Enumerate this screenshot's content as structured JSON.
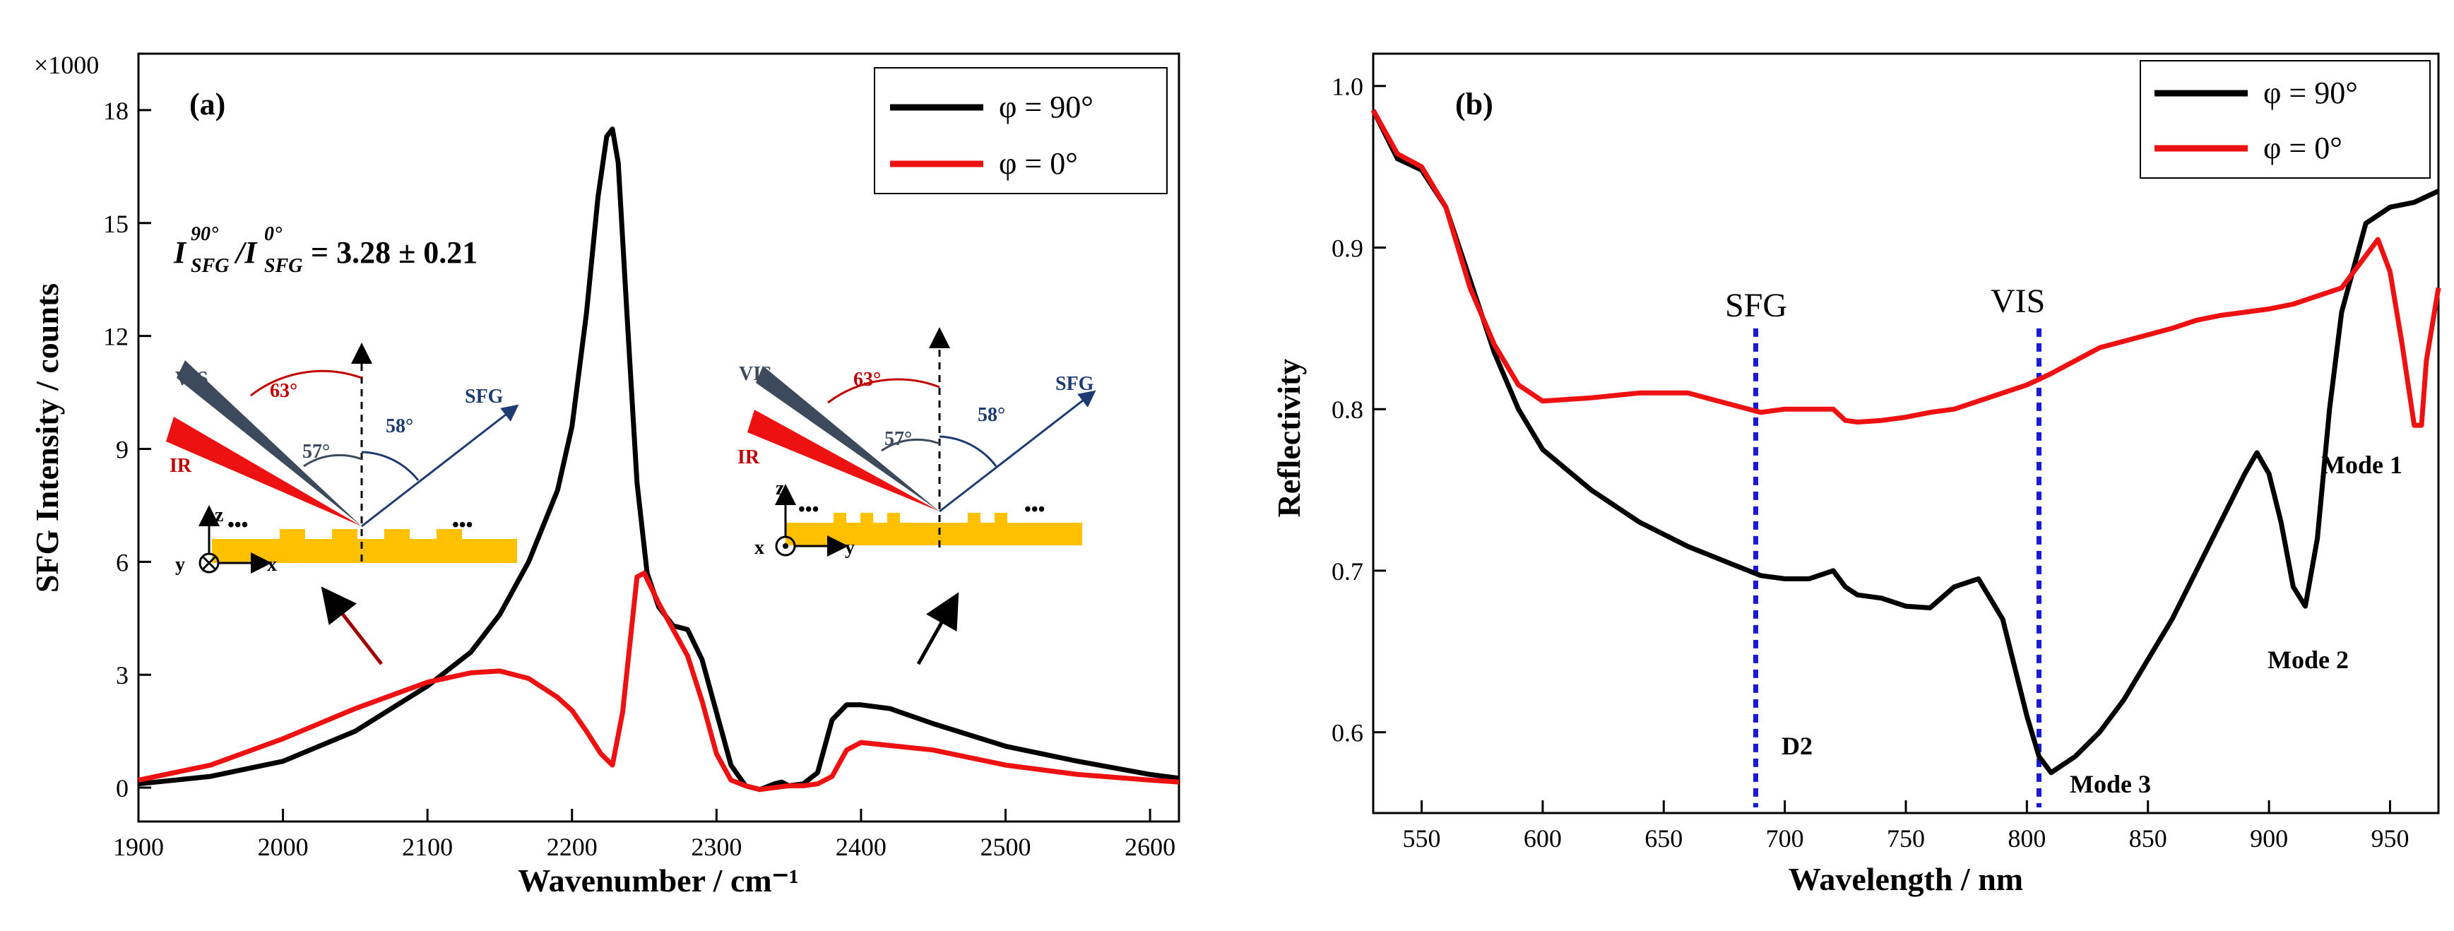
{
  "panel_a": {
    "label": "(a)",
    "multiplier": "×1000",
    "ratio_text": "I^90°_SFG / I^0°_SFG = 3.28 ± 0.21",
    "ratio_i": "I",
    "ratio_sup1": "90°",
    "ratio_sub": "SFG",
    "ratio_slash": "/I",
    "ratio_sup2": "0°",
    "ratio_value": "= 3.28 ± 0.21",
    "inset_left": {
      "vis": "VIS",
      "ir": "IR",
      "sfg": "SFG",
      "angle_63": "63°",
      "angle_57": "57°",
      "angle_58": "58°",
      "axis_z": "z",
      "axis_y": "y",
      "axis_x": "x",
      "dots": "•••"
    },
    "inset_right": {
      "vis": "VIS",
      "ir": "IR",
      "sfg": "SFG",
      "angle_63": "63°",
      "angle_57": "57°",
      "angle_58": "58°",
      "axis_z": "z",
      "axis_x": "x",
      "axis_y": "y",
      "dots": "•••"
    }
  },
  "panel_b": {
    "label": "(b)",
    "marker_sfg": "SFG",
    "marker_vis": "VIS",
    "mode1": "Mode 1",
    "mode2": "Mode 2",
    "mode3": "Mode 3",
    "d2": "D2"
  },
  "colors": {
    "black_series": "#000000",
    "red_series": "#ee1111",
    "marker": "#1a1ad6",
    "gold": "#ffc000",
    "navy": "#1f3b73",
    "dark_red": "#c00000",
    "slate": "#3d4a5c"
  },
  "chart_data": [
    {
      "type": "line",
      "title": "",
      "xlabel": "Wavenumber / cm⁻¹",
      "ylabel": "SFG Intensity / counts",
      "xlim": [
        1900,
        2620
      ],
      "ylim": [
        -0.9,
        19.5
      ],
      "xticks": [
        1900,
        2000,
        2100,
        2200,
        2300,
        2400,
        2500,
        2600
      ],
      "yticks": [
        0,
        3,
        6,
        9,
        12,
        15,
        18
      ],
      "legend_position": "top-right",
      "series": [
        {
          "name": "φ = 90°",
          "color": "#000000",
          "x": [
            1900,
            1950,
            2000,
            2050,
            2100,
            2130,
            2150,
            2170,
            2190,
            2200,
            2210,
            2218,
            2224,
            2228,
            2232,
            2238,
            2245,
            2252,
            2260,
            2270,
            2280,
            2290,
            2300,
            2310,
            2320,
            2330,
            2340,
            2345,
            2350,
            2360,
            2370,
            2380,
            2390,
            2400,
            2420,
            2450,
            2500,
            2550,
            2600,
            2620
          ],
          "y": [
            0.1,
            0.3,
            0.7,
            1.5,
            2.7,
            3.6,
            4.6,
            6.0,
            7.9,
            9.6,
            12.6,
            15.7,
            17.3,
            17.5,
            16.6,
            12.6,
            8.1,
            5.7,
            4.8,
            4.3,
            4.2,
            3.4,
            2.0,
            0.6,
            0.05,
            -0.05,
            0.1,
            0.15,
            0.05,
            0.1,
            0.4,
            1.8,
            2.2,
            2.2,
            2.1,
            1.7,
            1.1,
            0.7,
            0.35,
            0.25
          ]
        },
        {
          "name": "φ = 0°",
          "color": "#ee1111",
          "x": [
            1900,
            1950,
            2000,
            2050,
            2100,
            2130,
            2150,
            2170,
            2190,
            2200,
            2210,
            2220,
            2228,
            2235,
            2240,
            2245,
            2250,
            2260,
            2270,
            2280,
            2290,
            2300,
            2310,
            2320,
            2330,
            2340,
            2350,
            2360,
            2370,
            2380,
            2390,
            2400,
            2450,
            2500,
            2550,
            2600,
            2620
          ],
          "y": [
            0.2,
            0.6,
            1.3,
            2.1,
            2.8,
            3.05,
            3.1,
            2.9,
            2.4,
            2.05,
            1.5,
            0.9,
            0.6,
            2.0,
            3.8,
            5.6,
            5.7,
            4.9,
            4.2,
            3.5,
            2.3,
            0.9,
            0.2,
            0.05,
            -0.05,
            0.0,
            0.05,
            0.05,
            0.1,
            0.3,
            1.0,
            1.2,
            1.0,
            0.6,
            0.35,
            0.2,
            0.15
          ]
        }
      ],
      "annotations": [
        "(a)",
        "×1000",
        "I^90°_SFG / I^0°_SFG = 3.28 ± 0.21"
      ]
    },
    {
      "type": "line",
      "title": "",
      "xlabel": "Wavelength / nm",
      "ylabel": "Reflectivity",
      "xlim": [
        530,
        970
      ],
      "ylim": [
        0.55,
        1.02
      ],
      "xticks": [
        550,
        600,
        650,
        700,
        750,
        800,
        850,
        900,
        950
      ],
      "yticks": [
        0.6,
        0.7,
        0.8,
        0.9,
        1.0
      ],
      "legend_position": "top-right",
      "vertical_markers": [
        {
          "x": 688,
          "label": "SFG"
        },
        {
          "x": 805,
          "label": "VIS"
        }
      ],
      "series": [
        {
          "name": "φ = 90°",
          "color": "#000000",
          "x": [
            530,
            540,
            550,
            560,
            570,
            580,
            590,
            600,
            620,
            640,
            660,
            680,
            690,
            700,
            710,
            720,
            725,
            730,
            740,
            750,
            760,
            770,
            780,
            790,
            800,
            805,
            810,
            820,
            830,
            840,
            850,
            860,
            870,
            880,
            890,
            895,
            900,
            905,
            910,
            915,
            920,
            925,
            930,
            940,
            950,
            960,
            970
          ],
          "y": [
            0.985,
            0.955,
            0.948,
            0.925,
            0.88,
            0.835,
            0.8,
            0.775,
            0.75,
            0.73,
            0.715,
            0.703,
            0.697,
            0.695,
            0.695,
            0.7,
            0.69,
            0.685,
            0.683,
            0.678,
            0.677,
            0.69,
            0.695,
            0.67,
            0.61,
            0.585,
            0.575,
            0.585,
            0.6,
            0.62,
            0.645,
            0.67,
            0.7,
            0.73,
            0.76,
            0.773,
            0.76,
            0.73,
            0.69,
            0.678,
            0.72,
            0.8,
            0.86,
            0.915,
            0.925,
            0.928,
            0.935
          ]
        },
        {
          "name": "φ = 0°",
          "color": "#ee1111",
          "x": [
            530,
            540,
            550,
            560,
            570,
            580,
            590,
            600,
            620,
            640,
            660,
            680,
            690,
            700,
            710,
            720,
            725,
            730,
            740,
            750,
            760,
            770,
            780,
            790,
            800,
            810,
            820,
            830,
            840,
            850,
            860,
            870,
            880,
            890,
            900,
            910,
            920,
            930,
            940,
            945,
            950,
            955,
            960,
            963,
            965,
            970
          ],
          "y": [
            0.985,
            0.958,
            0.95,
            0.925,
            0.875,
            0.84,
            0.815,
            0.805,
            0.807,
            0.81,
            0.81,
            0.802,
            0.798,
            0.8,
            0.8,
            0.8,
            0.793,
            0.792,
            0.793,
            0.795,
            0.798,
            0.8,
            0.805,
            0.81,
            0.815,
            0.822,
            0.83,
            0.838,
            0.842,
            0.846,
            0.85,
            0.855,
            0.858,
            0.86,
            0.862,
            0.865,
            0.87,
            0.875,
            0.895,
            0.905,
            0.885,
            0.84,
            0.79,
            0.79,
            0.83,
            0.875
          ]
        }
      ],
      "annotations": [
        "(b)",
        "SFG",
        "VIS",
        "Mode 1",
        "Mode 2",
        "Mode 3",
        "D2"
      ]
    }
  ]
}
